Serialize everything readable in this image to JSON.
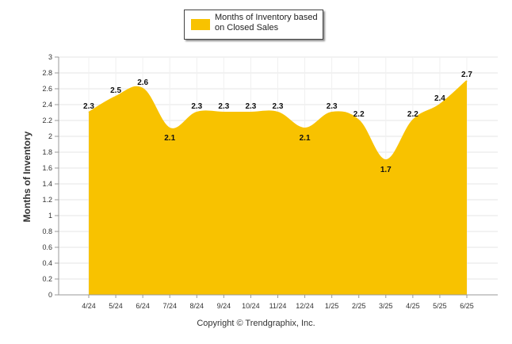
{
  "chart_data": {
    "type": "area",
    "categories": [
      "4/24",
      "5/24",
      "6/24",
      "7/24",
      "8/24",
      "9/24",
      "10/24",
      "11/24",
      "12/24",
      "1/25",
      "2/25",
      "3/25",
      "4/25",
      "5/25",
      "6/25"
    ],
    "series": [
      {
        "name": "Months of Inventory based on Closed Sales",
        "values": [
          2.3,
          2.5,
          2.6,
          2.1,
          2.3,
          2.3,
          2.3,
          2.3,
          2.1,
          2.3,
          2.2,
          1.7,
          2.2,
          2.4,
          2.7
        ]
      }
    ],
    "data_labels": [
      "2.3",
      "2.5",
      "2.6",
      "2.1",
      "2.3",
      "2.3",
      "2.3",
      "2.3",
      "2.1",
      "2.3",
      "2.2",
      "1.7",
      "2.2",
      "2.4",
      "2.7"
    ],
    "ylabel": "Months of Inventory",
    "xlabel": "",
    "ylim": [
      0,
      3
    ],
    "yticks": [
      "0",
      "0.2",
      "0.4",
      "0.6",
      "0.8",
      "1",
      "1.2",
      "1.4",
      "1.6",
      "1.8",
      "2",
      "2.2",
      "2.4",
      "2.6",
      "2.8",
      "3"
    ],
    "grid": true,
    "legend": "top-center",
    "color": "#f8c200"
  },
  "legend_label": "Months of Inventory based on Closed Sales",
  "copyright": "Copyright © Trendgraphix, Inc."
}
